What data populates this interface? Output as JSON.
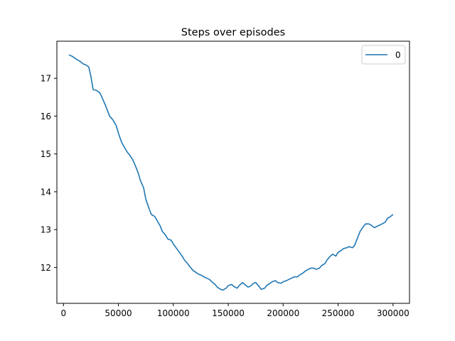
{
  "chart_data": {
    "type": "line",
    "title": "Steps over episodes",
    "xlabel": "",
    "ylabel": "",
    "xlim": [
      -6000,
      315000
    ],
    "ylim": [
      11.05,
      17.98
    ],
    "x_ticks": [
      0,
      50000,
      100000,
      150000,
      200000,
      250000,
      300000
    ],
    "x_tick_labels": [
      "0",
      "50000",
      "100000",
      "150000",
      "200000",
      "250000",
      "300000"
    ],
    "y_ticks": [
      12,
      13,
      14,
      15,
      16,
      17
    ],
    "y_tick_labels": [
      "12",
      "13",
      "14",
      "15",
      "16",
      "17"
    ],
    "grid": false,
    "legend": {
      "position": "top-right",
      "entries": [
        "0"
      ]
    },
    "colors": {
      "series": "#1f77b4",
      "axes": "#000000",
      "legend_border": "#cccccc"
    },
    "series": [
      {
        "name": "0",
        "x": [
          5000,
          8000,
          12000,
          15000,
          18000,
          20000,
          23000,
          25000,
          27000,
          30000,
          33000,
          35000,
          38000,
          40000,
          42000,
          45000,
          48000,
          50000,
          53000,
          55000,
          58000,
          60000,
          63000,
          65000,
          68000,
          70000,
          73000,
          75000,
          78000,
          80000,
          83000,
          85000,
          88000,
          90000,
          93000,
          95000,
          98000,
          100000,
          103000,
          105000,
          108000,
          110000,
          113000,
          115000,
          118000,
          120000,
          123000,
          125000,
          128000,
          130000,
          133000,
          135000,
          138000,
          140000,
          143000,
          145000,
          148000,
          150000,
          153000,
          155000,
          158000,
          160000,
          163000,
          165000,
          168000,
          170000,
          173000,
          175000,
          178000,
          180000,
          183000,
          185000,
          188000,
          190000,
          193000,
          195000,
          198000,
          200000,
          203000,
          205000,
          208000,
          210000,
          213000,
          215000,
          218000,
          220000,
          223000,
          225000,
          228000,
          230000,
          233000,
          235000,
          238000,
          240000,
          243000,
          245000,
          248000,
          250000,
          253000,
          255000,
          258000,
          260000,
          263000,
          265000,
          268000,
          270000,
          273000,
          275000,
          278000,
          280000,
          283000,
          285000,
          288000,
          290000,
          293000,
          295000,
          298000,
          300000
        ],
        "y": [
          17.62,
          17.58,
          17.5,
          17.45,
          17.38,
          17.36,
          17.3,
          17.05,
          16.7,
          16.68,
          16.62,
          16.5,
          16.3,
          16.15,
          16.0,
          15.9,
          15.75,
          15.55,
          15.3,
          15.2,
          15.05,
          14.98,
          14.85,
          14.72,
          14.5,
          14.3,
          14.1,
          13.8,
          13.55,
          13.4,
          13.35,
          13.25,
          13.1,
          12.95,
          12.85,
          12.75,
          12.72,
          12.62,
          12.5,
          12.42,
          12.3,
          12.2,
          12.1,
          12.02,
          11.92,
          11.88,
          11.82,
          11.8,
          11.75,
          11.72,
          11.68,
          11.62,
          11.55,
          11.48,
          11.42,
          11.4,
          11.45,
          11.52,
          11.55,
          11.5,
          11.45,
          11.52,
          11.6,
          11.55,
          11.48,
          11.5,
          11.58,
          11.6,
          11.5,
          11.42,
          11.45,
          11.52,
          11.58,
          11.62,
          11.65,
          11.6,
          11.58,
          11.62,
          11.65,
          11.68,
          11.72,
          11.75,
          11.75,
          11.8,
          11.85,
          11.9,
          11.95,
          11.98,
          11.98,
          11.95,
          11.98,
          12.05,
          12.1,
          12.2,
          12.3,
          12.35,
          12.3,
          12.4,
          12.45,
          12.5,
          12.52,
          12.55,
          12.52,
          12.58,
          12.8,
          12.95,
          13.08,
          13.15,
          13.15,
          13.12,
          13.05,
          13.08,
          13.12,
          13.15,
          13.2,
          13.3,
          13.35,
          13.4
        ]
      }
    ]
  }
}
